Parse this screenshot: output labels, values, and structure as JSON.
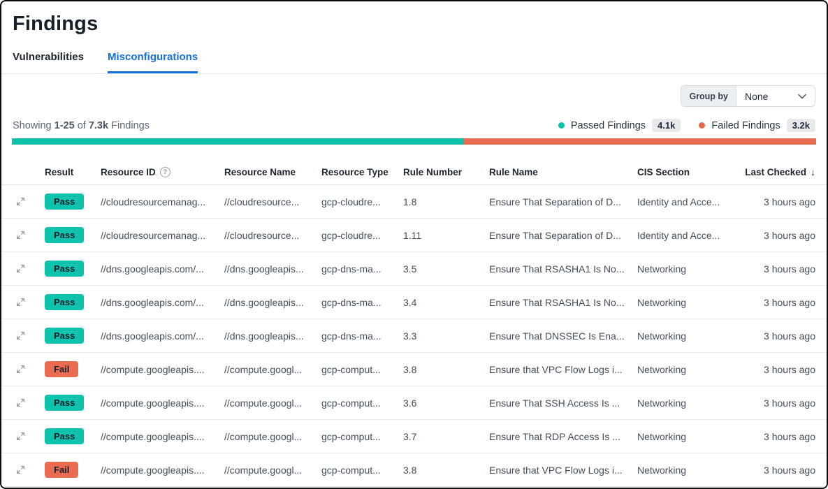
{
  "page": {
    "title": "Findings"
  },
  "tabs": {
    "vulnerabilities": "Vulnerabilities",
    "misconfigurations": "Misconfigurations"
  },
  "toolbar": {
    "group_by_label": "Group by",
    "group_by_value": "None"
  },
  "summary": {
    "showing_prefix": "Showing",
    "range": "1-25",
    "of_word": "of",
    "total": "7.3k",
    "suffix": "Findings",
    "passed": {
      "label": "Passed Findings",
      "count": "4.1k",
      "color": "#0cc0aa"
    },
    "failed": {
      "label": "Failed Findings",
      "count": "3.2k",
      "color": "#ea6a50"
    },
    "bar": {
      "passed_pct": 56.2,
      "failed_pct": 43.8
    }
  },
  "table": {
    "columns": [
      "Result",
      "Resource ID",
      "Resource Name",
      "Resource Type",
      "Rule Number",
      "Rule Name",
      "CIS Section",
      "Last Checked"
    ],
    "help_glyph": "?",
    "sort_glyph": "↓",
    "rows": [
      {
        "result": "Pass",
        "resource_id": "//cloudresourcemanag...",
        "resource_name": "//cloudresource...",
        "resource_type": "gcp-cloudre...",
        "rule_number": "1.8",
        "rule_name": "Ensure That Separation of D...",
        "cis_section": "Identity and Acce...",
        "last_checked": "3 hours ago"
      },
      {
        "result": "Pass",
        "resource_id": "//cloudresourcemanag...",
        "resource_name": "//cloudresource...",
        "resource_type": "gcp-cloudre...",
        "rule_number": "1.11",
        "rule_name": "Ensure That Separation of D...",
        "cis_section": "Identity and Acce...",
        "last_checked": "3 hours ago"
      },
      {
        "result": "Pass",
        "resource_id": "//dns.googleapis.com/...",
        "resource_name": "//dns.googleapis...",
        "resource_type": "gcp-dns-ma...",
        "rule_number": "3.5",
        "rule_name": "Ensure That RSASHA1 Is No...",
        "cis_section": "Networking",
        "last_checked": "3 hours ago"
      },
      {
        "result": "Pass",
        "resource_id": "//dns.googleapis.com/...",
        "resource_name": "//dns.googleapis...",
        "resource_type": "gcp-dns-ma...",
        "rule_number": "3.4",
        "rule_name": "Ensure That RSASHA1 Is No...",
        "cis_section": "Networking",
        "last_checked": "3 hours ago"
      },
      {
        "result": "Pass",
        "resource_id": "//dns.googleapis.com/...",
        "resource_name": "//dns.googleapis...",
        "resource_type": "gcp-dns-ma...",
        "rule_number": "3.3",
        "rule_name": "Ensure That DNSSEC Is Ena...",
        "cis_section": "Networking",
        "last_checked": "3 hours ago"
      },
      {
        "result": "Fail",
        "resource_id": "//compute.googleapis....",
        "resource_name": "//compute.googl...",
        "resource_type": "gcp-comput...",
        "rule_number": "3.8",
        "rule_name": "Ensure that VPC Flow Logs i...",
        "cis_section": "Networking",
        "last_checked": "3 hours ago"
      },
      {
        "result": "Pass",
        "resource_id": "//compute.googleapis....",
        "resource_name": "//compute.googl...",
        "resource_type": "gcp-comput...",
        "rule_number": "3.6",
        "rule_name": "Ensure That SSH Access Is ...",
        "cis_section": "Networking",
        "last_checked": "3 hours ago"
      },
      {
        "result": "Pass",
        "resource_id": "//compute.googleapis....",
        "resource_name": "//compute.googl...",
        "resource_type": "gcp-comput...",
        "rule_number": "3.7",
        "rule_name": "Ensure That RDP Access Is ...",
        "cis_section": "Networking",
        "last_checked": "3 hours ago"
      },
      {
        "result": "Fail",
        "resource_id": "//compute.googleapis....",
        "resource_name": "//compute.googl...",
        "resource_type": "gcp-comput...",
        "rule_number": "3.8",
        "rule_name": "Ensure that VPC Flow Logs i...",
        "cis_section": "Networking",
        "last_checked": "3 hours ago"
      }
    ]
  }
}
